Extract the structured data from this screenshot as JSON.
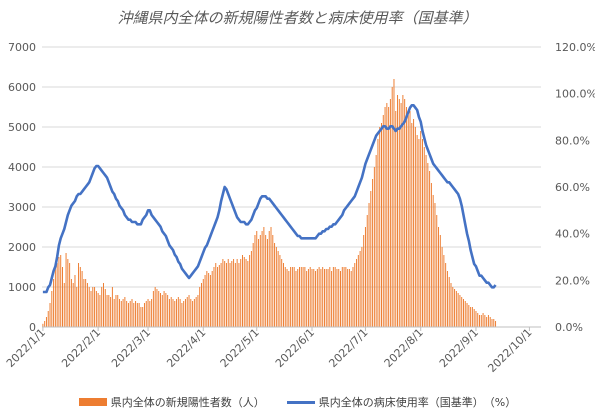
{
  "chart_data": {
    "type": "bar+line",
    "title": "沖縄県内全体の新規陽性者数と病床使用率（国基準）",
    "y_left": {
      "ticks": [
        "0",
        "1000",
        "2000",
        "3000",
        "4000",
        "5000",
        "6000",
        "7000"
      ],
      "ylim": [
        0,
        7000
      ]
    },
    "y_right": {
      "ticks": [
        "0.0%",
        "20.0%",
        "40.0%",
        "60.0%",
        "80.0%",
        "100.0%",
        "120.0%"
      ],
      "ylim": [
        0,
        120
      ]
    },
    "x_axis": {
      "start_date": "2022-01-01",
      "end_date": "2022-10-07",
      "tick_labels": [
        "2022/1/1",
        "2022/2/1",
        "2022/3/1",
        "2022/4/1",
        "2022/5/1",
        "2022/6/1",
        "2022/7/1",
        "2022/8/1",
        "2022/9/1",
        "2022/10/1"
      ]
    },
    "grid": true,
    "legend_position": "bottom",
    "bar_color": "#ED7D31",
    "line_color": "#4472C4",
    "bar_series": {
      "name": "県内全体の新規陽性者数（人）",
      "values": [
        80,
        150,
        250,
        400,
        600,
        900,
        1200,
        1500,
        1600,
        1750,
        1800,
        1500,
        1100,
        1850,
        1700,
        1600,
        1200,
        1100,
        1300,
        1000,
        1600,
        1500,
        1400,
        1200,
        1200,
        1100,
        1000,
        900,
        1000,
        1000,
        900,
        850,
        800,
        1000,
        1100,
        950,
        800,
        800,
        750,
        1000,
        700,
        800,
        800,
        700,
        650,
        700,
        750,
        650,
        600,
        650,
        700,
        600,
        650,
        600,
        600,
        500,
        500,
        600,
        650,
        700,
        650,
        700,
        900,
        1000,
        950,
        900,
        850,
        800,
        900,
        850,
        800,
        700,
        750,
        700,
        650,
        700,
        750,
        700,
        600,
        650,
        700,
        750,
        800,
        700,
        650,
        700,
        750,
        800,
        1000,
        1100,
        1200,
        1300,
        1400,
        1350,
        1300,
        1400,
        1500,
        1600,
        1500,
        1550,
        1600,
        1700,
        1650,
        1600,
        1700,
        1600,
        1650,
        1700,
        1600,
        1700,
        1600,
        1700,
        1800,
        1750,
        1700,
        1650,
        1800,
        1900,
        2100,
        2300,
        2400,
        2200,
        2300,
        2400,
        2500,
        2300,
        2200,
        2400,
        2500,
        2300,
        2100,
        2000,
        1900,
        1800,
        1700,
        1600,
        1500,
        1450,
        1400,
        1500,
        1500,
        1500,
        1400,
        1450,
        1500,
        1500,
        1500,
        1500,
        1400,
        1450,
        1500,
        1450,
        1450,
        1400,
        1450,
        1500,
        1450,
        1500,
        1450,
        1450,
        1450,
        1500,
        1400,
        1500,
        1500,
        1450,
        1450,
        1400,
        1500,
        1500,
        1500,
        1450,
        1450,
        1400,
        1500,
        1600,
        1700,
        1800,
        1900,
        2000,
        2300,
        2500,
        2800,
        3100,
        3400,
        3700,
        4000,
        4300,
        4700,
        5000,
        5100,
        5300,
        5500,
        5600,
        5500,
        5700,
        6000,
        6200,
        5400,
        5800,
        5700,
        5600,
        5800,
        5700,
        5500,
        5300,
        5400,
        5100,
        5200,
        5000,
        4800,
        4700,
        4900,
        4700,
        4500,
        4300,
        4100,
        3900,
        3600,
        3300,
        3100,
        2800,
        2500,
        2300,
        2000,
        1800,
        1600,
        1400,
        1250,
        1100,
        1000,
        950,
        900,
        850,
        800,
        750,
        700,
        650,
        600,
        550,
        500,
        500,
        450,
        400,
        350,
        300,
        300,
        350,
        300,
        250,
        300,
        250,
        200,
        200,
        150
      ]
    },
    "line_series": {
      "name": "県内全体の病床使用率（国基準）　（%）",
      "values": [
        15.0,
        15.0,
        15.0,
        17.0,
        18.0,
        21.0,
        24.0,
        26.0,
        30.0,
        35.0,
        38.0,
        40.0,
        42.0,
        45.0,
        48.0,
        50.0,
        52.0,
        53.0,
        54.0,
        56.0,
        57.0,
        57.0,
        58.0,
        59.0,
        60.0,
        61.0,
        62.0,
        64.0,
        66.0,
        68.0,
        69.0,
        69.0,
        68.0,
        67.0,
        66.0,
        65.0,
        64.0,
        62.0,
        60.0,
        58.0,
        57.0,
        55.0,
        54.0,
        52.0,
        51.0,
        50.0,
        48.0,
        47.0,
        46.0,
        46.0,
        45.0,
        45.0,
        45.0,
        44.0,
        44.0,
        44.0,
        46.0,
        47.0,
        48.0,
        50.0,
        50.0,
        48.0,
        47.0,
        46.0,
        45.0,
        44.0,
        43.0,
        41.0,
        40.0,
        39.0,
        37.0,
        35.0,
        34.0,
        33.0,
        31.0,
        30.0,
        28.0,
        27.0,
        25.0,
        24.0,
        23.0,
        22.0,
        21.0,
        22.0,
        23.0,
        24.0,
        25.0,
        26.0,
        28.0,
        30.0,
        32.0,
        34.0,
        35.0,
        37.0,
        39.0,
        41.0,
        43.0,
        45.0,
        47.0,
        50.0,
        54.0,
        57.0,
        60.0,
        59.0,
        57.0,
        55.0,
        53.0,
        51.0,
        49.0,
        47.0,
        46.0,
        45.0,
        45.0,
        45.0,
        44.0,
        44.0,
        45.0,
        46.0,
        48.0,
        50.0,
        51.0,
        53.0,
        55.0,
        56.0,
        56.0,
        56.0,
        55.0,
        55.0,
        54.0,
        53.0,
        52.0,
        51.0,
        50.0,
        49.0,
        48.0,
        47.0,
        46.0,
        45.0,
        44.0,
        43.0,
        42.0,
        41.0,
        40.0,
        39.0,
        39.0,
        38.0,
        38.0,
        38.0,
        38.0,
        38.0,
        38.0,
        38.0,
        38.0,
        38.0,
        39.0,
        40.0,
        40.0,
        41.0,
        41.0,
        42.0,
        42.0,
        43.0,
        43.0,
        44.0,
        44.0,
        45.0,
        46.0,
        47.0,
        48.0,
        50.0,
        51.0,
        52.0,
        53.0,
        54.0,
        55.0,
        56.0,
        58.0,
        60.0,
        62.0,
        64.0,
        67.0,
        70.0,
        72.0,
        74.0,
        76.0,
        78.0,
        80.0,
        82.0,
        83.0,
        84.0,
        85.0,
        86.0,
        86.0,
        85.0,
        85.0,
        86.0,
        86.0,
        85.0,
        84.0,
        85.0,
        85.0,
        86.0,
        87.0,
        88.0,
        90.0,
        92.0,
        94.0,
        95.0,
        95.0,
        94.0,
        93.0,
        90.0,
        88.0,
        84.0,
        81.0,
        78.0,
        76.0,
        74.0,
        72.0,
        70.0,
        69.0,
        68.0,
        67.0,
        66.0,
        65.0,
        64.0,
        63.0,
        62.0,
        62.0,
        61.0,
        60.0,
        59.0,
        58.0,
        57.0,
        55.0,
        52.0,
        48.0,
        44.0,
        40.0,
        37.0,
        33.0,
        30.0,
        27.0,
        26.0,
        24.0,
        22.0,
        22.0,
        21.0,
        20.0,
        19.0,
        19.0,
        18.0,
        17.0,
        17.0,
        18.0
      ]
    }
  }
}
